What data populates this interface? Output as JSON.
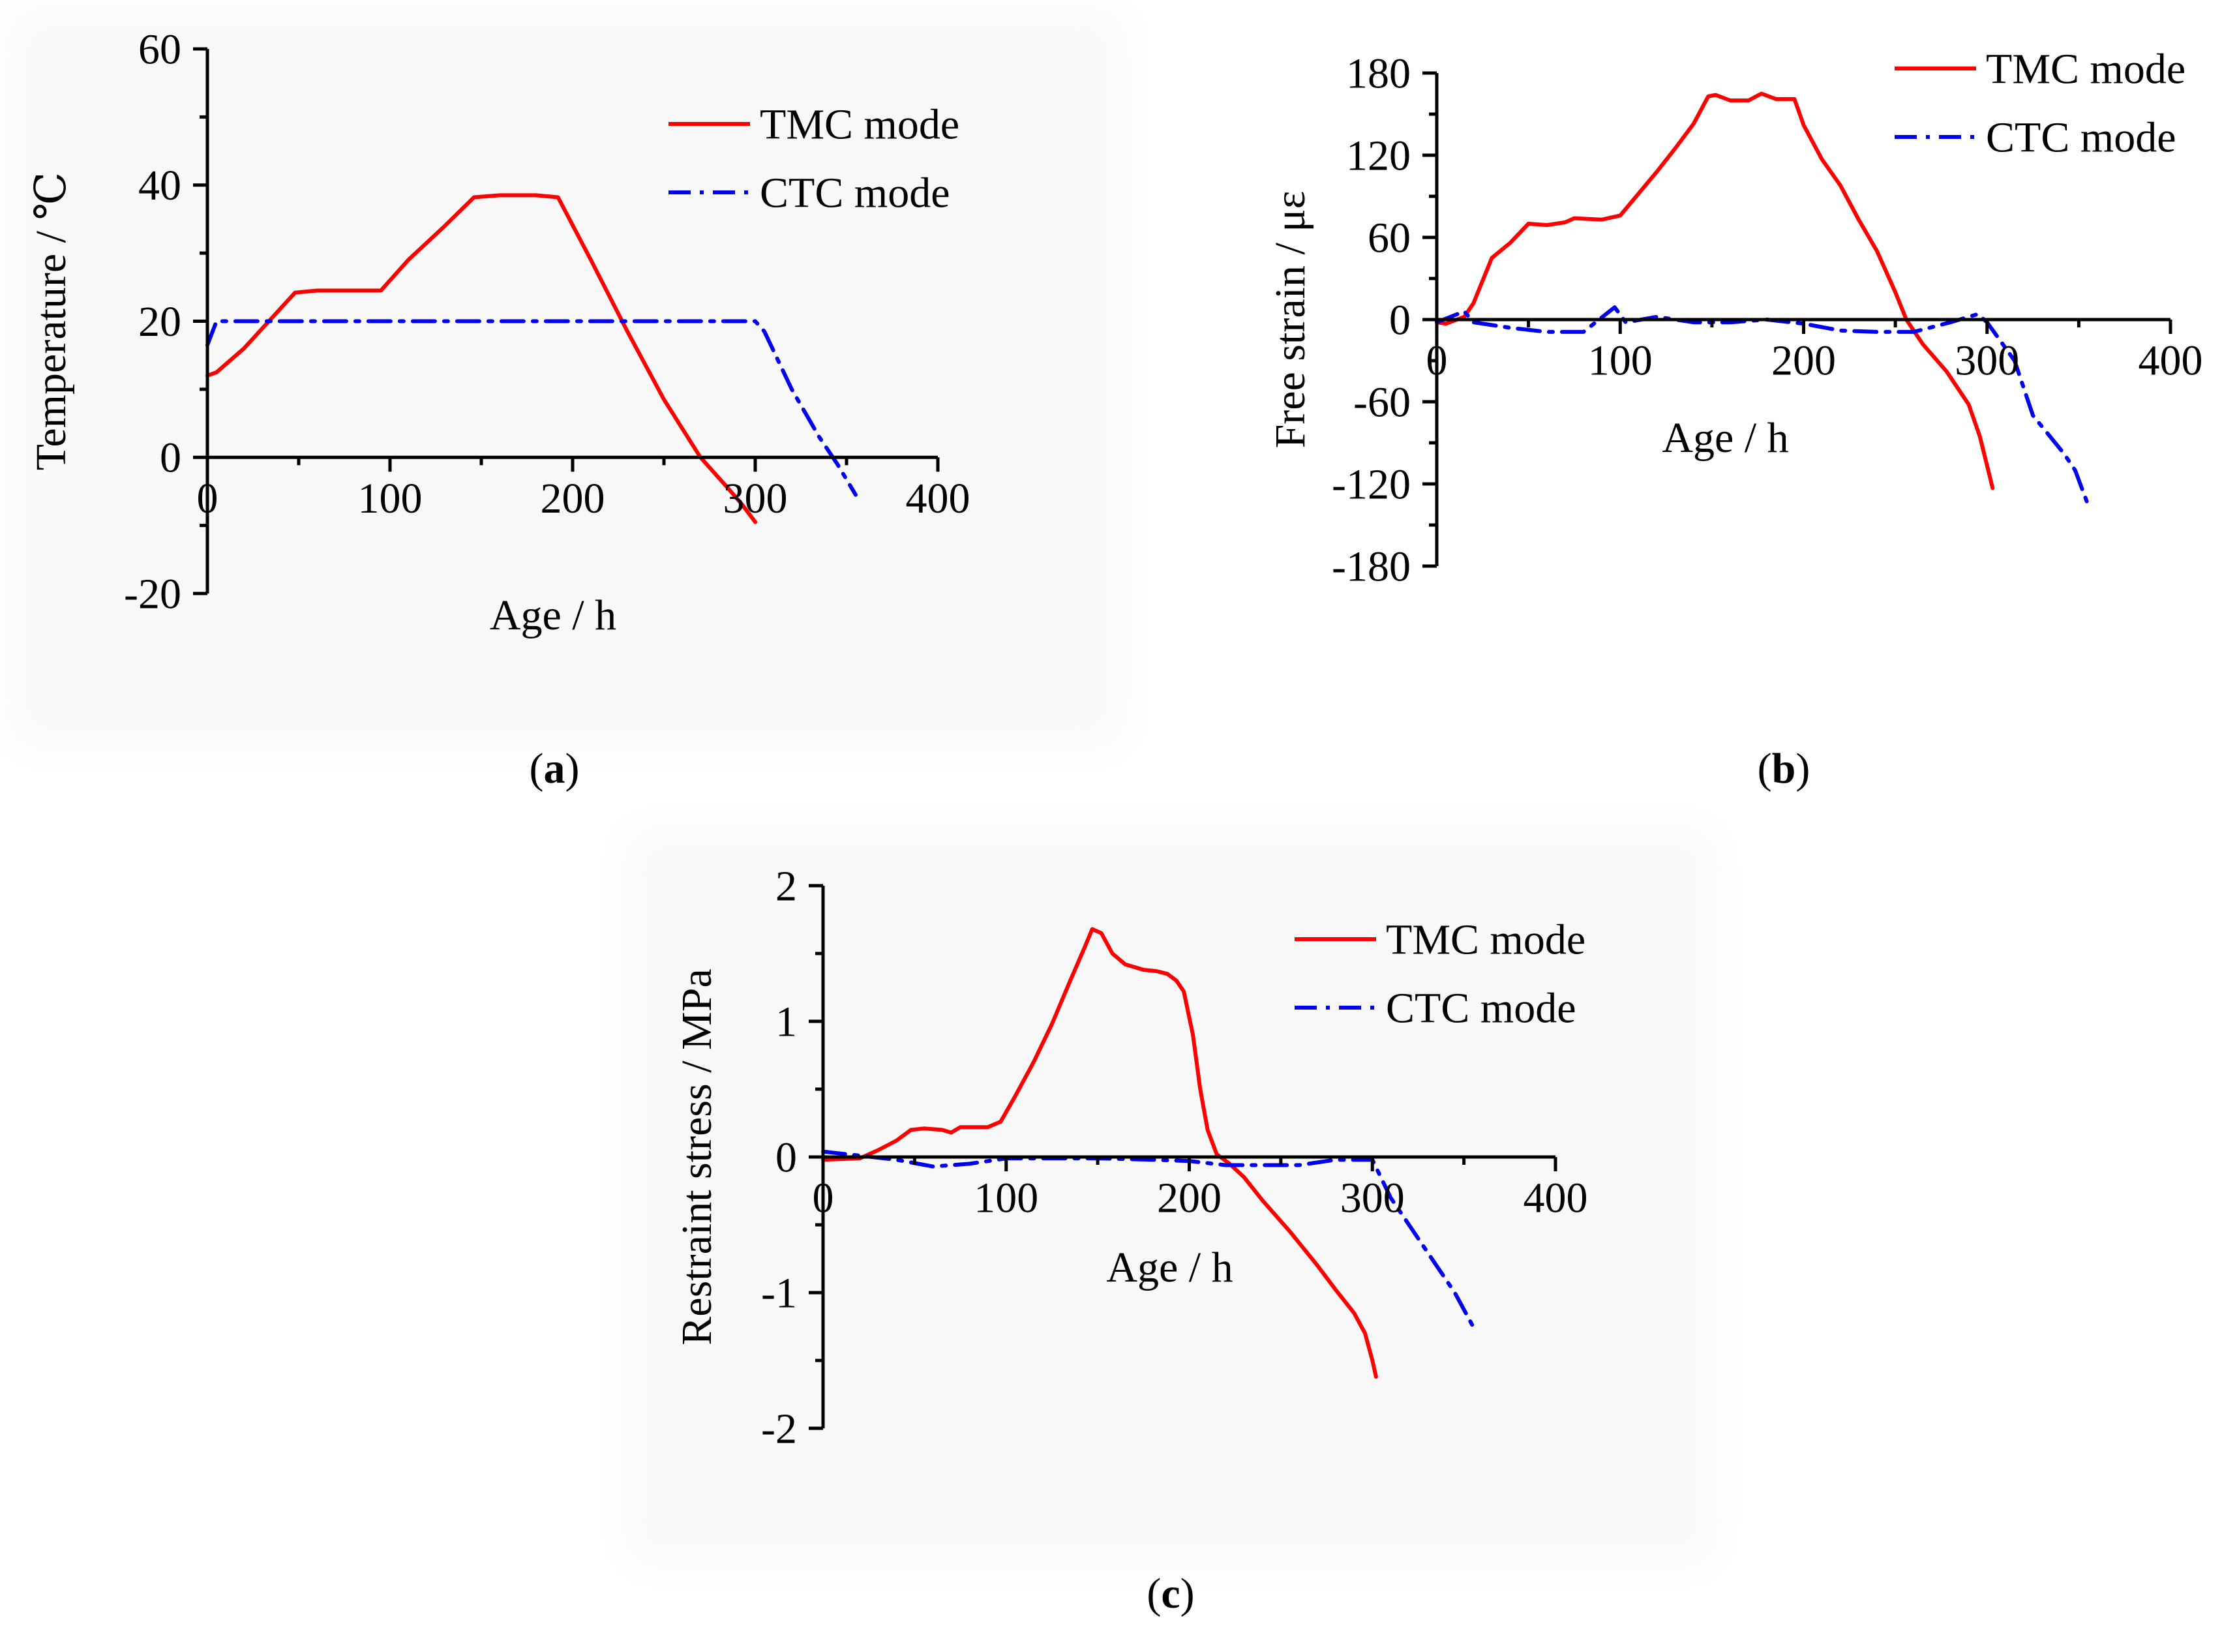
{
  "colors": {
    "tmc": "#ff0000",
    "ctc": "#0000ee",
    "axis": "#000000"
  },
  "chart_data": [
    {
      "type": "line",
      "panel_label": "a",
      "title": "",
      "xlabel": "Age / h",
      "ylabel": "Temperature / ℃",
      "xlim": [
        0,
        400
      ],
      "ylim": [
        -20,
        60
      ],
      "xticks": [
        "0",
        "100",
        "200",
        "300",
        "400"
      ],
      "yticks": [
        "-20",
        "0",
        "20",
        "40",
        "60"
      ],
      "legend_position": "top-right",
      "series": [
        {
          "name": "TMC mode",
          "style": "solid",
          "points": [
            [
              0,
              12
            ],
            [
              5,
              12.5
            ],
            [
              20,
              16
            ],
            [
              48,
              24.2
            ],
            [
              60,
              24.5
            ],
            [
              80,
              24.5
            ],
            [
              95,
              24.5
            ],
            [
              110,
              29
            ],
            [
              130,
              34
            ],
            [
              146,
              38.2
            ],
            [
              160,
              38.5
            ],
            [
              180,
              38.5
            ],
            [
              192,
              38.2
            ],
            [
              210,
              29
            ],
            [
              230,
              18.5
            ],
            [
              250,
              8.5
            ],
            [
              270,
              0
            ],
            [
              285,
              -4.5
            ],
            [
              293,
              -7
            ],
            [
              300,
              -9.5
            ]
          ]
        },
        {
          "name": "CTC mode",
          "style": "dash-dot",
          "points": [
            [
              0,
              16.5
            ],
            [
              5,
              20
            ],
            [
              40,
              20
            ],
            [
              100,
              20
            ],
            [
              200,
              20
            ],
            [
              250,
              20
            ],
            [
              300,
              20
            ],
            [
              305,
              18.5
            ],
            [
              320,
              10
            ],
            [
              335,
              3
            ],
            [
              345,
              -1
            ],
            [
              355,
              -5.5
            ]
          ]
        }
      ]
    },
    {
      "type": "line",
      "panel_label": "b",
      "title": "",
      "xlabel": "Age / h",
      "ylabel": "Free strain / με",
      "xlim": [
        0,
        400
      ],
      "ylim": [
        -180,
        180
      ],
      "xticks": [
        "0",
        "100",
        "200",
        "300",
        "400"
      ],
      "yticks": [
        "-180",
        "-120",
        "-60",
        "0",
        "60",
        "120",
        "180"
      ],
      "legend_position": "top-right",
      "series": [
        {
          "name": "TMC mode",
          "style": "solid",
          "points": [
            [
              0,
              -2
            ],
            [
              5,
              -3
            ],
            [
              15,
              2
            ],
            [
              20,
              12
            ],
            [
              30,
              45
            ],
            [
              40,
              56
            ],
            [
              50,
              70
            ],
            [
              60,
              69
            ],
            [
              70,
              71
            ],
            [
              75,
              74
            ],
            [
              90,
              73
            ],
            [
              100,
              76
            ],
            [
              110,
              92
            ],
            [
              120,
              108
            ],
            [
              130,
              125
            ],
            [
              140,
              143
            ],
            [
              148,
              163
            ],
            [
              152,
              164
            ],
            [
              160,
              160
            ],
            [
              170,
              160
            ],
            [
              177,
              165
            ],
            [
              185,
              161
            ],
            [
              195,
              161
            ],
            [
              200,
              142
            ],
            [
              210,
              117
            ],
            [
              220,
              98
            ],
            [
              230,
              73
            ],
            [
              240,
              50
            ],
            [
              250,
              20
            ],
            [
              256,
              0
            ],
            [
              265,
              -18
            ],
            [
              278,
              -38
            ],
            [
              290,
              -62
            ],
            [
              296,
              -85
            ],
            [
              301,
              -112
            ],
            [
              303,
              -123
            ]
          ]
        },
        {
          "name": "CTC mode",
          "style": "dash-dot",
          "points": [
            [
              0,
              -2
            ],
            [
              15,
              6
            ],
            [
              20,
              -2
            ],
            [
              40,
              -6
            ],
            [
              60,
              -9
            ],
            [
              80,
              -9
            ],
            [
              97,
              9
            ],
            [
              103,
              -2
            ],
            [
              120,
              2
            ],
            [
              140,
              -2
            ],
            [
              160,
              -2
            ],
            [
              180,
              0
            ],
            [
              200,
              -3
            ],
            [
              220,
              -8
            ],
            [
              240,
              -9
            ],
            [
              260,
              -9
            ],
            [
              280,
              -2
            ],
            [
              295,
              4
            ],
            [
              300,
              -2
            ],
            [
              315,
              -30
            ],
            [
              325,
              -70
            ],
            [
              342,
              -98
            ],
            [
              348,
              -110
            ],
            [
              355,
              -135
            ]
          ]
        }
      ]
    },
    {
      "type": "line",
      "panel_label": "c",
      "title": "",
      "xlabel": "Age / h",
      "ylabel": "Restraint stress / MPa",
      "xlim": [
        0,
        400
      ],
      "ylim": [
        -2,
        2
      ],
      "xticks": [
        "0",
        "100",
        "200",
        "300",
        "400"
      ],
      "yticks": [
        "-2",
        "-1",
        "0",
        "1",
        "2"
      ],
      "legend_position": "top-right",
      "series": [
        {
          "name": "TMC mode",
          "style": "solid",
          "points": [
            [
              0,
              -0.02
            ],
            [
              20,
              -0.01
            ],
            [
              30,
              0.05
            ],
            [
              40,
              0.12
            ],
            [
              48,
              0.2
            ],
            [
              55,
              0.21
            ],
            [
              65,
              0.2
            ],
            [
              70,
              0.18
            ],
            [
              75,
              0.22
            ],
            [
              90,
              0.22
            ],
            [
              97,
              0.26
            ],
            [
              105,
              0.45
            ],
            [
              115,
              0.7
            ],
            [
              125,
              0.98
            ],
            [
              135,
              1.3
            ],
            [
              143,
              1.55
            ],
            [
              147,
              1.68
            ],
            [
              152,
              1.65
            ],
            [
              158,
              1.5
            ],
            [
              165,
              1.42
            ],
            [
              175,
              1.38
            ],
            [
              182,
              1.37
            ],
            [
              188,
              1.35
            ],
            [
              193,
              1.3
            ],
            [
              197,
              1.22
            ],
            [
              202,
              0.9
            ],
            [
              206,
              0.5
            ],
            [
              210,
              0.2
            ],
            [
              215,
              0.02
            ],
            [
              222,
              -0.05
            ],
            [
              230,
              -0.15
            ],
            [
              240,
              -0.32
            ],
            [
              255,
              -0.55
            ],
            [
              270,
              -0.8
            ],
            [
              280,
              -0.98
            ],
            [
              290,
              -1.15
            ],
            [
              296,
              -1.3
            ],
            [
              300,
              -1.5
            ],
            [
              302,
              -1.62
            ]
          ]
        },
        {
          "name": "CTC mode",
          "style": "dash-dot",
          "points": [
            [
              0,
              0.04
            ],
            [
              20,
              0.01
            ],
            [
              40,
              -0.02
            ],
            [
              60,
              -0.07
            ],
            [
              80,
              -0.05
            ],
            [
              100,
              -0.01
            ],
            [
              120,
              -0.01
            ],
            [
              150,
              -0.01
            ],
            [
              180,
              -0.02
            ],
            [
              200,
              -0.03
            ],
            [
              220,
              -0.06
            ],
            [
              240,
              -0.06
            ],
            [
              260,
              -0.06
            ],
            [
              280,
              -0.02
            ],
            [
              300,
              -0.02
            ],
            [
              310,
              -0.3
            ],
            [
              320,
              -0.5
            ],
            [
              335,
              -0.8
            ],
            [
              345,
              -1.0
            ],
            [
              355,
              -1.25
            ]
          ]
        }
      ]
    }
  ]
}
